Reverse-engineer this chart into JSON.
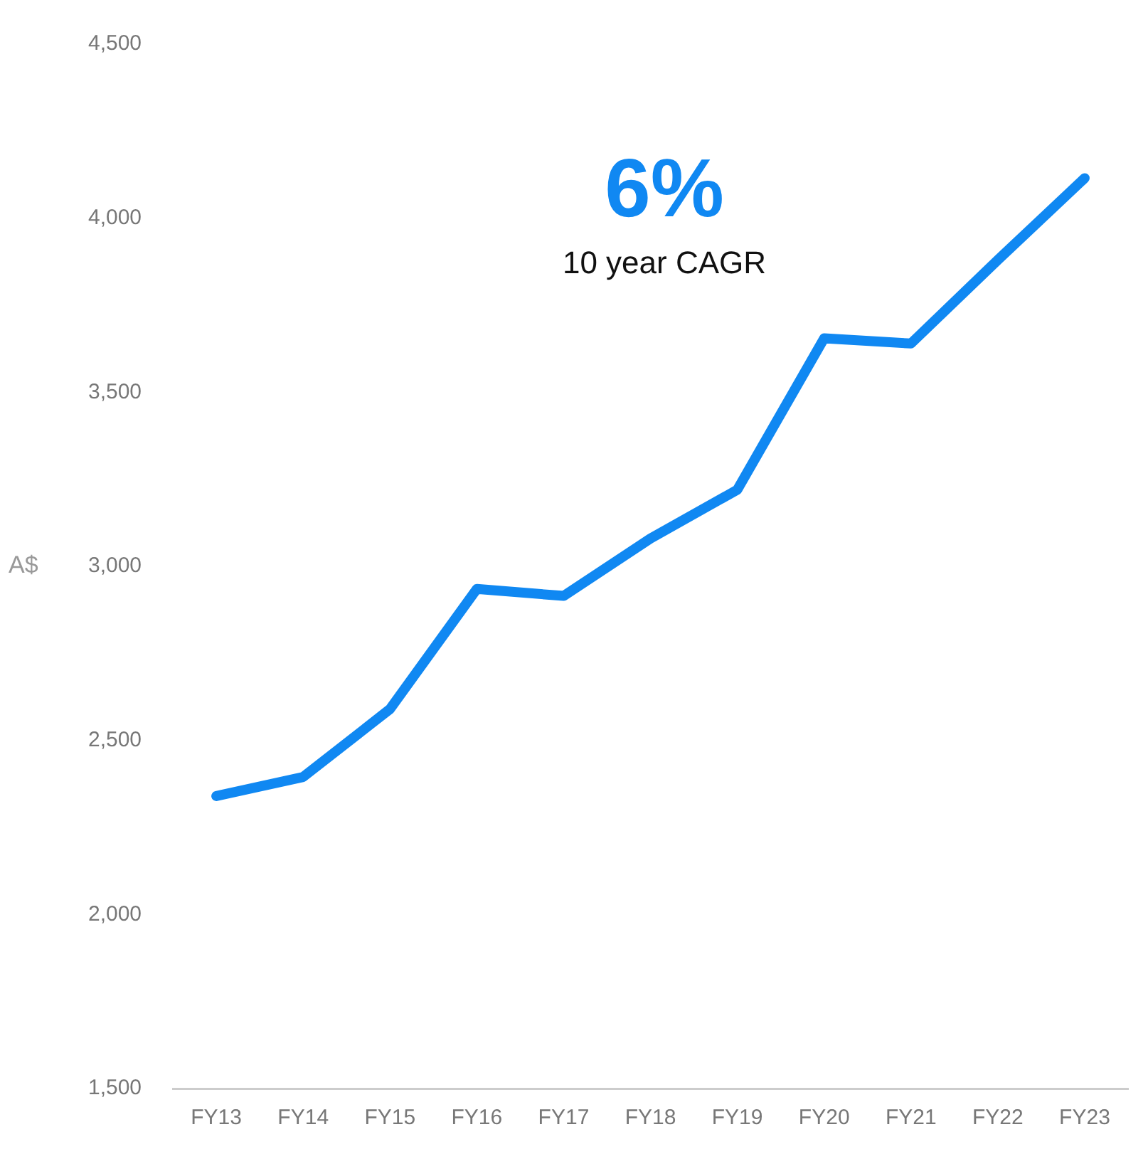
{
  "chart_data": {
    "type": "line",
    "ylabel": "A$",
    "annotations": [
      "6%",
      "10 year CAGR"
    ],
    "categories": [
      "FY13",
      "FY14",
      "FY15",
      "FY16",
      "FY17",
      "FY18",
      "FY19",
      "FY20",
      "FY21",
      "FY22",
      "FY23"
    ],
    "series": [
      {
        "color": "#1088f2",
        "values": [
          2340,
          2395,
          2590,
          2935,
          2915,
          3080,
          3220,
          3655,
          3640,
          3880,
          4115
        ]
      }
    ],
    "ylim": [
      1500,
      4500
    ],
    "yticks": [
      {
        "value": 1500,
        "label": "1,500"
      },
      {
        "value": 2000,
        "label": "2,000"
      },
      {
        "value": 2500,
        "label": "2,500"
      },
      {
        "value": 3000,
        "label": "3,000"
      },
      {
        "value": 3500,
        "label": "3,500"
      },
      {
        "value": 4000,
        "label": "4,000"
      },
      {
        "value": 4500,
        "label": "4,500"
      }
    ],
    "grid": false,
    "legend": false,
    "marker": "none",
    "line_style": "solid"
  }
}
